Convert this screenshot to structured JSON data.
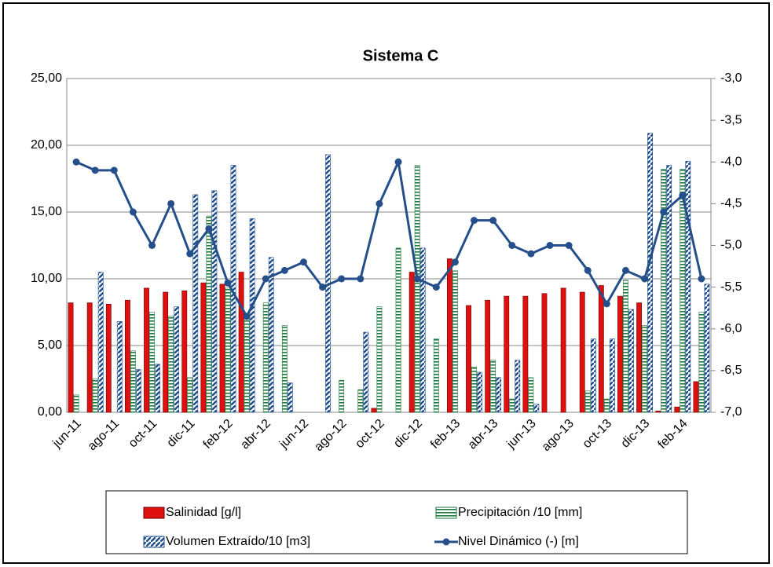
{
  "chart_data": {
    "type": "bar",
    "title": "Sistema C",
    "categories": [
      "jun-11",
      null,
      "ago-11",
      null,
      "oct-11",
      null,
      "dic-11",
      null,
      "feb-12",
      null,
      "abr-12",
      null,
      "jun-12",
      null,
      "ago-12",
      null,
      "oct-12",
      null,
      "dic-12",
      null,
      "feb-13",
      null,
      "abr-13",
      null,
      "jun-13",
      null,
      "ago-13",
      null,
      "oct-13",
      null,
      "dic-13",
      null,
      "feb-14",
      null
    ],
    "series": [
      {
        "name": "Salinidad [g/l]",
        "color": "#e01010",
        "fill": "solid",
        "values": [
          8.2,
          8.2,
          8.1,
          8.4,
          9.3,
          9.0,
          9.1,
          9.7,
          9.6,
          10.5,
          null,
          null,
          null,
          null,
          null,
          null,
          0.3,
          null,
          10.5,
          null,
          11.5,
          8.0,
          8.4,
          8.7,
          8.7,
          8.9,
          9.3,
          9.0,
          9.5,
          8.7,
          8.2,
          0.1,
          0.4,
          2.3
        ]
      },
      {
        "name": "Precipitación /10 [mm]",
        "color": "#1e7a3c",
        "fill": "hstripes",
        "values": [
          1.3,
          2.5,
          null,
          4.6,
          7.5,
          7.2,
          2.6,
          14.7,
          9.3,
          7.3,
          8.2,
          6.5,
          null,
          null,
          2.4,
          1.7,
          7.9,
          12.3,
          18.5,
          5.5,
          10.6,
          3.4,
          3.9,
          1.0,
          2.6,
          null,
          null,
          1.6,
          1.0,
          9.9,
          6.5,
          18.2,
          18.2,
          7.5
        ]
      },
      {
        "name": "Volumen Extraído/10 [m3]",
        "color": "#1f4e8c",
        "fill": "diagonal",
        "values": [
          null,
          10.5,
          6.8,
          3.2,
          3.6,
          7.9,
          16.3,
          16.6,
          18.5,
          14.5,
          11.6,
          2.2,
          null,
          19.3,
          null,
          6.0,
          null,
          null,
          12.3,
          null,
          null,
          3.0,
          2.6,
          3.9,
          0.6,
          null,
          null,
          5.5,
          5.5,
          7.7,
          20.9,
          18.5,
          18.8,
          9.6
        ]
      },
      {
        "name": "Nivel Dinámico (-) [m]",
        "color": "#254f8a",
        "type": "line",
        "axis": "y2",
        "values": [
          -4.0,
          -4.1,
          -4.1,
          -4.6,
          -5.0,
          -4.5,
          -5.1,
          -4.8,
          -5.45,
          -5.85,
          -5.4,
          -5.3,
          -5.2,
          -5.5,
          -5.4,
          -5.4,
          -4.5,
          -4.0,
          -5.4,
          -5.5,
          -5.2,
          -4.7,
          -4.7,
          -5.0,
          -5.1,
          -5.0,
          -5.0,
          -5.3,
          -5.7,
          -5.3,
          -5.4,
          -4.6,
          -4.4,
          -5.4
        ]
      }
    ],
    "ylim": [
      0,
      25
    ],
    "yticks": [
      {
        "value": 0,
        "label": "0,00"
      },
      {
        "value": 5,
        "label": "5,00"
      },
      {
        "value": 10,
        "label": "10,00"
      },
      {
        "value": 15,
        "label": "15,00"
      },
      {
        "value": 20,
        "label": "20,00"
      },
      {
        "value": 25,
        "label": "25,00"
      }
    ],
    "y2lim": [
      -7,
      -3
    ],
    "y2ticks": [
      {
        "value": -7,
        "label": "-7,0"
      },
      {
        "value": -6.5,
        "label": "-6,5"
      },
      {
        "value": -6,
        "label": "-6,0"
      },
      {
        "value": -5.5,
        "label": "-5,5"
      },
      {
        "value": -5,
        "label": "-5,0"
      },
      {
        "value": -4.5,
        "label": "-4,5"
      },
      {
        "value": -4,
        "label": "-4,0"
      },
      {
        "value": -3.5,
        "label": "-3,5"
      },
      {
        "value": -3,
        "label": "-3,0"
      }
    ],
    "grid": true
  }
}
